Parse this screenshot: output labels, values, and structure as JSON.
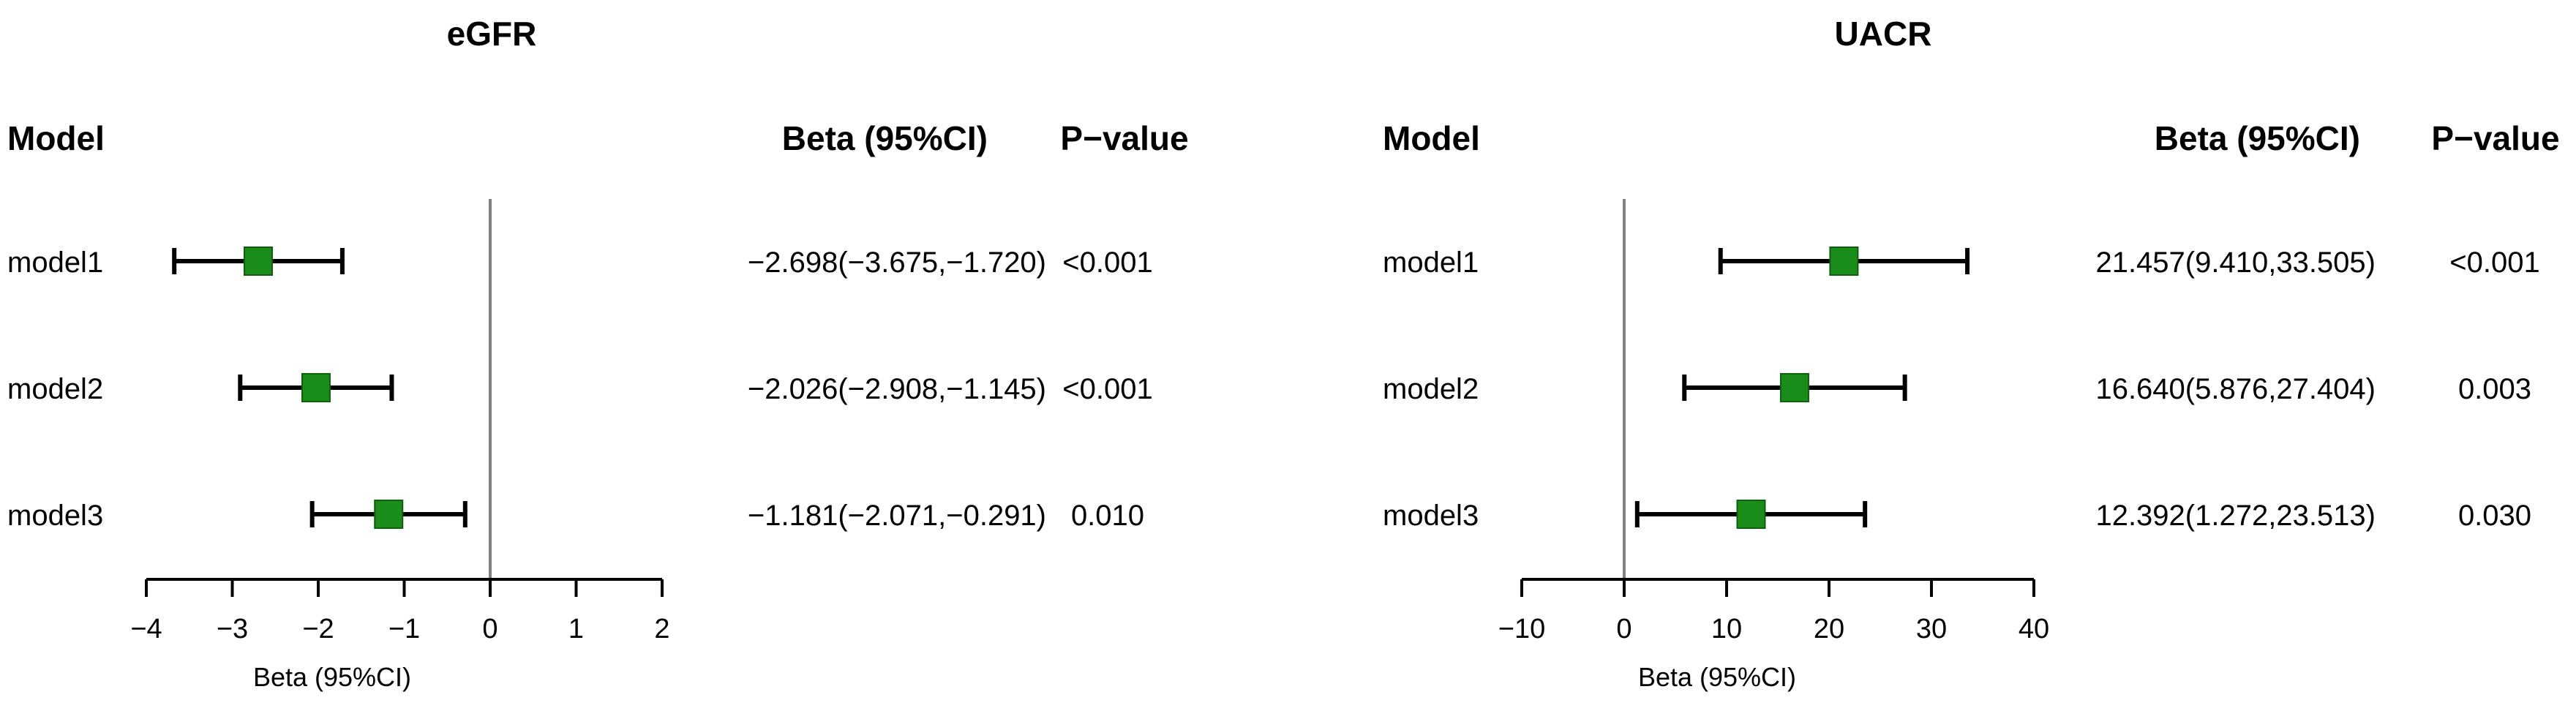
{
  "colors": {
    "marker": "#1a8c1a",
    "marker_border": "#0f5f0f",
    "ci_line": "#000000",
    "ref_line": "#808080"
  },
  "chart_data": [
    {
      "type": "forest",
      "title": "eGFR",
      "headers": {
        "model": "Model",
        "beta": "Beta  (95%CI)",
        "p": "P−value"
      },
      "xlabel": "Beta (95%CI)",
      "xlim": [
        -4,
        2
      ],
      "xticks": [
        -4,
        -3,
        -2,
        -1,
        0,
        1,
        2
      ],
      "xtick_labels": [
        "−4",
        "−3",
        "−2",
        "−1",
        "0",
        "1",
        "2"
      ],
      "reference": 0,
      "rows": [
        {
          "label": "model1",
          "beta": -2.698,
          "lower": -3.675,
          "upper": -1.72,
          "ci_text": "−2.698(−3.675,−1.720)",
          "p_text": "<0.001"
        },
        {
          "label": "model2",
          "beta": -2.026,
          "lower": -2.908,
          "upper": -1.145,
          "ci_text": "−2.026(−2.908,−1.145)",
          "p_text": "<0.001"
        },
        {
          "label": "model3",
          "beta": -1.181,
          "lower": -2.071,
          "upper": -0.291,
          "ci_text": "−1.181(−2.071,−0.291)",
          "p_text": "0.010"
        }
      ]
    },
    {
      "type": "forest",
      "title": "UACR",
      "headers": {
        "model": "Model",
        "beta": "Beta  (95%CI)",
        "p": "P−value"
      },
      "xlabel": "Beta (95%CI)",
      "xlim": [
        -10,
        40
      ],
      "xticks": [
        -10,
        0,
        10,
        20,
        30,
        40
      ],
      "xtick_labels": [
        "−10",
        "0",
        "10",
        "20",
        "30",
        "40"
      ],
      "reference": 0,
      "rows": [
        {
          "label": "model1",
          "beta": 21.457,
          "lower": 9.41,
          "upper": 33.505,
          "ci_text": "21.457(9.410,33.505)",
          "p_text": "<0.001"
        },
        {
          "label": "model2",
          "beta": 16.64,
          "lower": 5.876,
          "upper": 27.404,
          "ci_text": "16.640(5.876,27.404)",
          "p_text": "0.003"
        },
        {
          "label": "model3",
          "beta": 12.392,
          "lower": 1.272,
          "upper": 23.513,
          "ci_text": "12.392(1.272,23.513)",
          "p_text": "0.030"
        }
      ]
    }
  ]
}
